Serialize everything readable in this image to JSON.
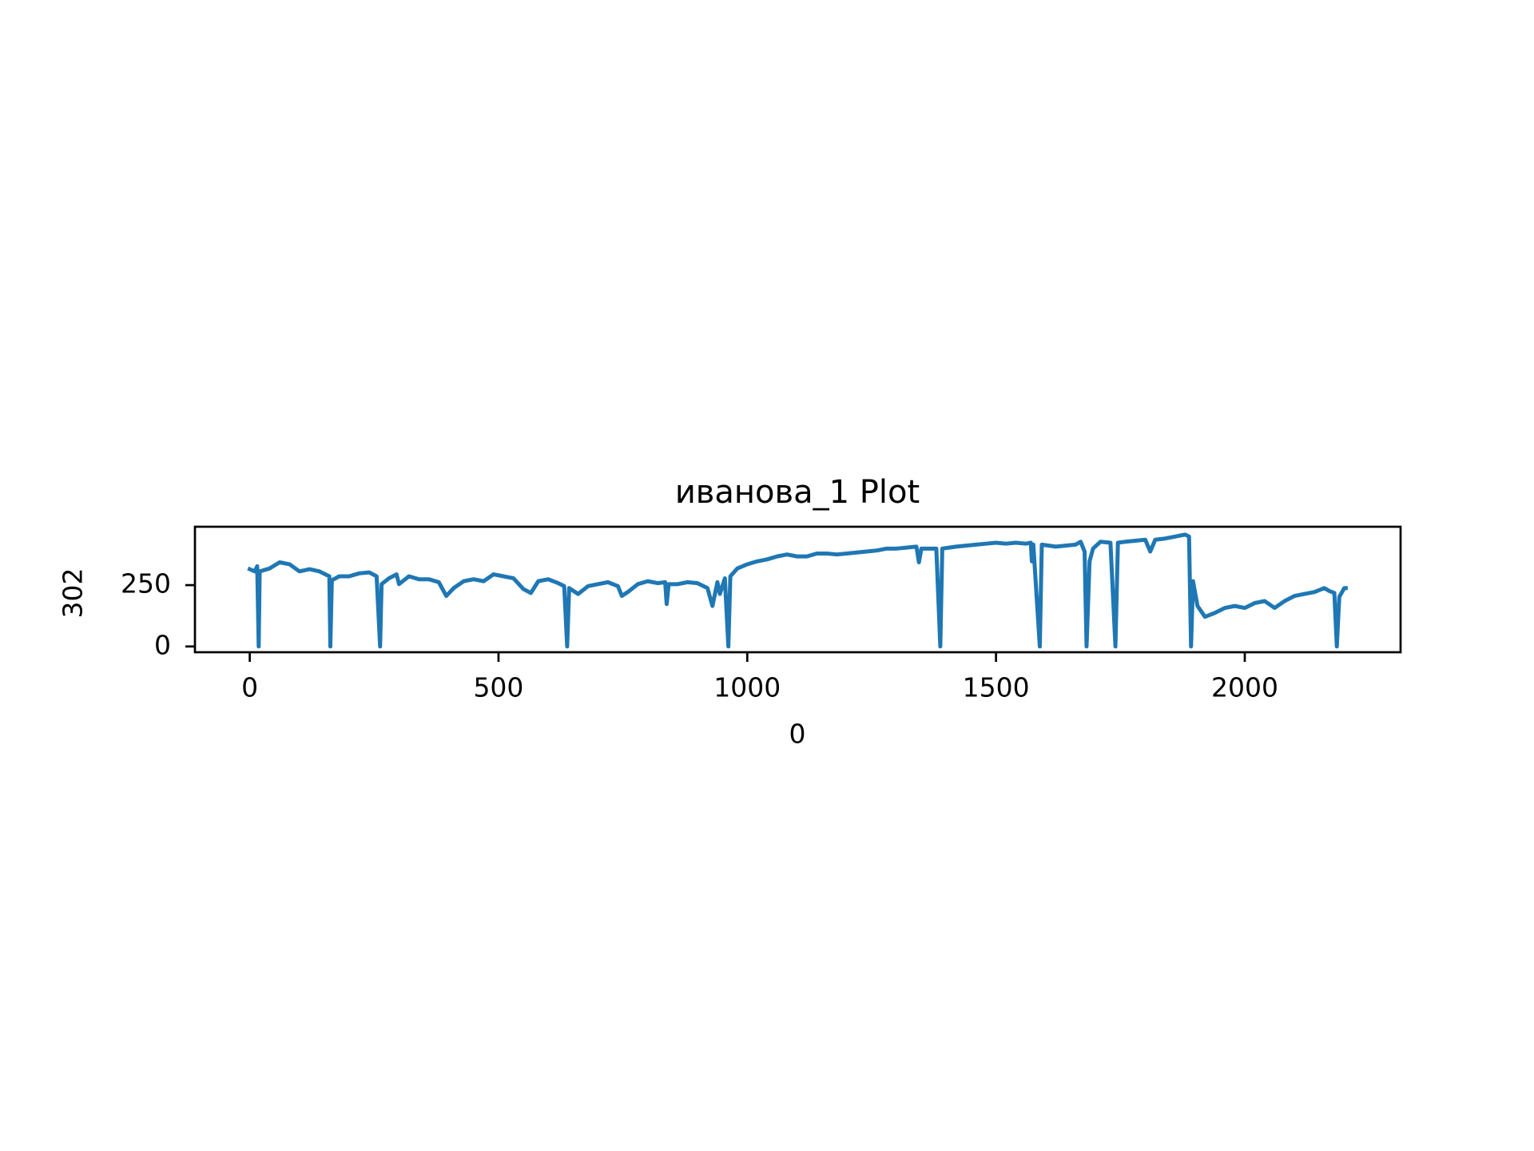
{
  "chart_data": {
    "type": "line",
    "title": "иванова_1 Plot",
    "x_label": "0",
    "y_label": "302",
    "color": "#1f77b4",
    "x": [
      0,
      10,
      15,
      18,
      20,
      40,
      60,
      80,
      100,
      120,
      140,
      160,
      162,
      165,
      180,
      200,
      220,
      240,
      255,
      262,
      265,
      280,
      295,
      300,
      320,
      340,
      360,
      380,
      395,
      410,
      430,
      450,
      470,
      490,
      510,
      530,
      550,
      565,
      580,
      600,
      620,
      632,
      638,
      642,
      660,
      680,
      700,
      720,
      740,
      748,
      760,
      780,
      800,
      820,
      835,
      838,
      842,
      860,
      880,
      900,
      920,
      930,
      940,
      945,
      955,
      962,
      966,
      980,
      1000,
      1020,
      1040,
      1060,
      1080,
      1100,
      1120,
      1140,
      1160,
      1180,
      1200,
      1220,
      1240,
      1260,
      1280,
      1300,
      1320,
      1340,
      1345,
      1350,
      1380,
      1388,
      1392,
      1420,
      1440,
      1460,
      1480,
      1500,
      1520,
      1540,
      1560,
      1570,
      1572,
      1575,
      1588,
      1592,
      1620,
      1640,
      1660,
      1670,
      1678,
      1682,
      1688,
      1695,
      1710,
      1730,
      1740,
      1745,
      1760,
      1780,
      1800,
      1810,
      1820,
      1840,
      1860,
      1880,
      1888,
      1892,
      1896,
      1905,
      1920,
      1940,
      1960,
      1980,
      2000,
      2020,
      2040,
      2060,
      2080,
      2100,
      2120,
      2140,
      2160,
      2170,
      2180,
      2185,
      2190,
      2200,
      2203
    ],
    "values": [
      315,
      306,
      327,
      0,
      306,
      318,
      343,
      335,
      306,
      315,
      306,
      286,
      0,
      270,
      286,
      286,
      298,
      302,
      286,
      0,
      254,
      278,
      294,
      254,
      286,
      274,
      274,
      262,
      206,
      238,
      266,
      274,
      266,
      294,
      286,
      278,
      234,
      218,
      266,
      274,
      258,
      246,
      0,
      238,
      214,
      246,
      254,
      262,
      246,
      206,
      222,
      254,
      266,
      258,
      262,
      173,
      254,
      254,
      262,
      258,
      238,
      165,
      262,
      214,
      278,
      0,
      286,
      318,
      335,
      347,
      355,
      367,
      375,
      367,
      367,
      379,
      379,
      375,
      379,
      383,
      387,
      391,
      399,
      399,
      403,
      407,
      343,
      399,
      399,
      0,
      399,
      407,
      411,
      415,
      419,
      423,
      419,
      423,
      419,
      423,
      347,
      415,
      0,
      415,
      407,
      411,
      415,
      427,
      387,
      0,
      347,
      399,
      427,
      423,
      0,
      423,
      427,
      431,
      435,
      387,
      435,
      440,
      448,
      456,
      448,
      0,
      266,
      165,
      121,
      137,
      157,
      165,
      157,
      177,
      185,
      157,
      185,
      206,
      214,
      222,
      238,
      226,
      218,
      0,
      202,
      238,
      238
    ],
    "xlim": [
      -110.15,
      2313.15
    ],
    "ylim": [
      -23.5,
      488
    ],
    "xticks": [
      0,
      500,
      1000,
      1500,
      2000
    ],
    "yticks": [
      0,
      250
    ]
  }
}
